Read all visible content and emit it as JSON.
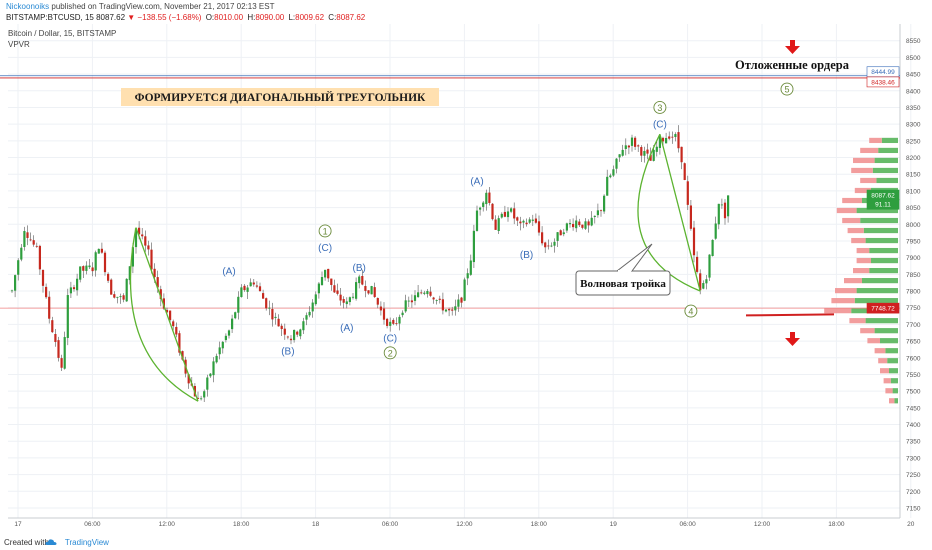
{
  "header": {
    "author": "Nickoonoiks",
    "published_text": " published on TradingView.com, November 21, 2017 02:13 EST",
    "symbol": "BITSTAMP:BTCUSD, 15",
    "last_price": "8087.62",
    "change_arrow": "▼",
    "change": "−138.55 (−1.68%)",
    "ohlc": [
      {
        "label": "O:",
        "value": "8010.00"
      },
      {
        "label": "H:",
        "value": "8090.00"
      },
      {
        "label": "L:",
        "value": "8009.62"
      },
      {
        "label": "C:",
        "value": "8087.62"
      }
    ]
  },
  "legend": {
    "series_title": "Bitcoin / Dollar, 15, BITSTAMP",
    "indicator": "VPVR"
  },
  "footer": {
    "created_with": "Created with",
    "brand": "TradingView",
    "logo_icon": "tradingview-cloud-icon"
  },
  "colors": {
    "up": "#2e9e3e",
    "down": "#c6281e",
    "wick": "#555555",
    "wave_label": "#3a6db8",
    "wave_circle": "#6a8a3a",
    "triangle_line": "#5cb330",
    "pending_line": "#d02020",
    "price_line": "#f08080",
    "annotation_bg": "#ffe0b0",
    "vp_up": "#4caf50",
    "vp_down": "#f08c8c",
    "grid": "#eef1f5",
    "axis_text": "#555555"
  },
  "annotations": {
    "triangle_title": "ФОРМИРУЕТСЯ ДИАГОНАЛЬНЫЙ ТРЕУГОЛЬНИК",
    "pending_orders": "Отложенные ордера",
    "callout": "Волновая тройка"
  },
  "chart_data": {
    "type": "candlestick",
    "title": "Bitcoin / Dollar, 15, BITSTAMP",
    "ylim": [
      7120,
      8600
    ],
    "y_ticks": [
      7150,
      7200,
      7250,
      7300,
      7350,
      7400,
      7450,
      7500,
      7550,
      7600,
      7650,
      7700,
      7750,
      7800,
      7850,
      7900,
      7950,
      8000,
      8050,
      8100,
      8150,
      8200,
      8250,
      8300,
      8350,
      8400,
      8450,
      8500,
      8550
    ],
    "x_tick_labels": [
      "17",
      "06:00",
      "12:00",
      "18:00",
      "18",
      "06:00",
      "12:00",
      "18:00",
      "19",
      "06:00",
      "12:00",
      "18:00",
      "20",
      "06:00",
      "12:00",
      "18:00",
      "21",
      "06:00",
      "12:00",
      "18:00",
      "22",
      "06:00"
    ],
    "price_markers": [
      {
        "label": "8444.99",
        "value": 8444.99,
        "color": "#3a6db8"
      },
      {
        "label": "8438.46",
        "value": 8438.46,
        "color": "#d02020"
      },
      {
        "label": "8087.62",
        "value": 8087.62,
        "color": "#2e9e3e"
      },
      {
        "label": "91.11",
        "value": 8060,
        "color": "#2e9e3e"
      },
      {
        "label": "7748.72",
        "value": 7748.72,
        "color": "#d02020"
      }
    ],
    "waypoints": [
      [
        0,
        7800
      ],
      [
        4,
        7990
      ],
      [
        8,
        7920
      ],
      [
        12,
        7720
      ],
      [
        14,
        7650
      ],
      [
        16,
        7560
      ],
      [
        18,
        7780
      ],
      [
        22,
        7860
      ],
      [
        26,
        7870
      ],
      [
        28,
        7940
      ],
      [
        32,
        7800
      ],
      [
        36,
        7770
      ],
      [
        40,
        7990
      ],
      [
        44,
        7910
      ],
      [
        48,
        7780
      ],
      [
        52,
        7690
      ],
      [
        56,
        7560
      ],
      [
        60,
        7470
      ],
      [
        62,
        7500
      ],
      [
        66,
        7610
      ],
      [
        70,
        7680
      ],
      [
        74,
        7800
      ],
      [
        78,
        7830
      ],
      [
        82,
        7760
      ],
      [
        86,
        7700
      ],
      [
        90,
        7660
      ],
      [
        94,
        7700
      ],
      [
        98,
        7790
      ],
      [
        101,
        7870
      ],
      [
        104,
        7790
      ],
      [
        108,
        7760
      ],
      [
        112,
        7830
      ],
      [
        116,
        7800
      ],
      [
        120,
        7720
      ],
      [
        123,
        7690
      ],
      [
        126,
        7750
      ],
      [
        130,
        7780
      ],
      [
        134,
        7810
      ],
      [
        138,
        7760
      ],
      [
        142,
        7730
      ],
      [
        145,
        7780
      ],
      [
        148,
        7900
      ],
      [
        150,
        8040
      ],
      [
        153,
        8100
      ],
      [
        156,
        7990
      ],
      [
        160,
        8050
      ],
      [
        164,
        7990
      ],
      [
        168,
        8020
      ],
      [
        172,
        7930
      ],
      [
        175,
        7950
      ],
      [
        178,
        7990
      ],
      [
        182,
        8010
      ],
      [
        186,
        7990
      ],
      [
        190,
        8050
      ],
      [
        192,
        8130
      ],
      [
        194,
        8160
      ],
      [
        197,
        8230
      ],
      [
        200,
        8250
      ],
      [
        203,
        8220
      ],
      [
        206,
        8190
      ],
      [
        209,
        8250
      ],
      [
        212,
        8270
      ],
      [
        214,
        8260
      ],
      [
        216,
        8200
      ],
      [
        218,
        8050
      ],
      [
        220,
        7900
      ],
      [
        222,
        7800
      ],
      [
        224,
        7850
      ],
      [
        226,
        7950
      ],
      [
        228,
        8070
      ],
      [
        230,
        8030
      ],
      [
        231,
        8087.62
      ]
    ],
    "wave_labels": [
      {
        "text": "(A)",
        "i": 70,
        "v": 7860,
        "circle": false
      },
      {
        "text": "(B)",
        "i": 89,
        "v": 7620,
        "circle": false
      },
      {
        "text": "1",
        "i": 101,
        "v": 7980,
        "circle": true
      },
      {
        "text": "(C)",
        "i": 101,
        "v": 7930,
        "circle": false
      },
      {
        "text": "(B)",
        "i": 112,
        "v": 7870,
        "circle": false
      },
      {
        "text": "(A)",
        "i": 108,
        "v": 7690,
        "circle": false
      },
      {
        "text": "(C)",
        "i": 122,
        "v": 7660,
        "circle": false
      },
      {
        "text": "2",
        "i": 122,
        "v": 7615,
        "circle": true
      },
      {
        "text": "(A)",
        "i": 150,
        "v": 8130,
        "circle": false
      },
      {
        "text": "(B)",
        "i": 166,
        "v": 7910,
        "circle": false
      },
      {
        "text": "3",
        "i": 209,
        "v": 8350,
        "circle": true
      },
      {
        "text": "(C)",
        "i": 209,
        "v": 8300,
        "circle": false
      },
      {
        "text": "4",
        "i": 219,
        "v": 7740,
        "circle": true
      },
      {
        "text": "5",
        "i": 250,
        "v": 8405,
        "circle": true
      }
    ],
    "volume_profile": [
      {
        "price": 8250,
        "up": 18,
        "down": 14
      },
      {
        "price": 8220,
        "up": 22,
        "down": 20
      },
      {
        "price": 8190,
        "up": 26,
        "down": 24
      },
      {
        "price": 8160,
        "up": 28,
        "down": 24
      },
      {
        "price": 8130,
        "up": 24,
        "down": 18
      },
      {
        "price": 8100,
        "up": 30,
        "down": 18
      },
      {
        "price": 8070,
        "up": 40,
        "down": 22
      },
      {
        "price": 8040,
        "up": 46,
        "down": 22
      },
      {
        "price": 8010,
        "up": 42,
        "down": 20
      },
      {
        "price": 7980,
        "up": 38,
        "down": 18
      },
      {
        "price": 7950,
        "up": 36,
        "down": 16
      },
      {
        "price": 7920,
        "up": 32,
        "down": 14
      },
      {
        "price": 7890,
        "up": 30,
        "down": 16
      },
      {
        "price": 7860,
        "up": 32,
        "down": 18
      },
      {
        "price": 7830,
        "up": 40,
        "down": 20
      },
      {
        "price": 7800,
        "up": 46,
        "down": 24
      },
      {
        "price": 7770,
        "up": 48,
        "down": 26
      },
      {
        "price": 7740,
        "up": 52,
        "down": 30
      },
      {
        "price": 7710,
        "up": 36,
        "down": 18
      },
      {
        "price": 7680,
        "up": 26,
        "down": 16
      },
      {
        "price": 7650,
        "up": 20,
        "down": 14
      },
      {
        "price": 7620,
        "up": 14,
        "down": 12
      },
      {
        "price": 7590,
        "up": 12,
        "down": 10
      },
      {
        "price": 7560,
        "up": 10,
        "down": 10
      },
      {
        "price": 7530,
        "up": 8,
        "down": 8
      },
      {
        "price": 7500,
        "up": 6,
        "down": 8
      },
      {
        "price": 7470,
        "up": 4,
        "down": 6
      }
    ]
  }
}
